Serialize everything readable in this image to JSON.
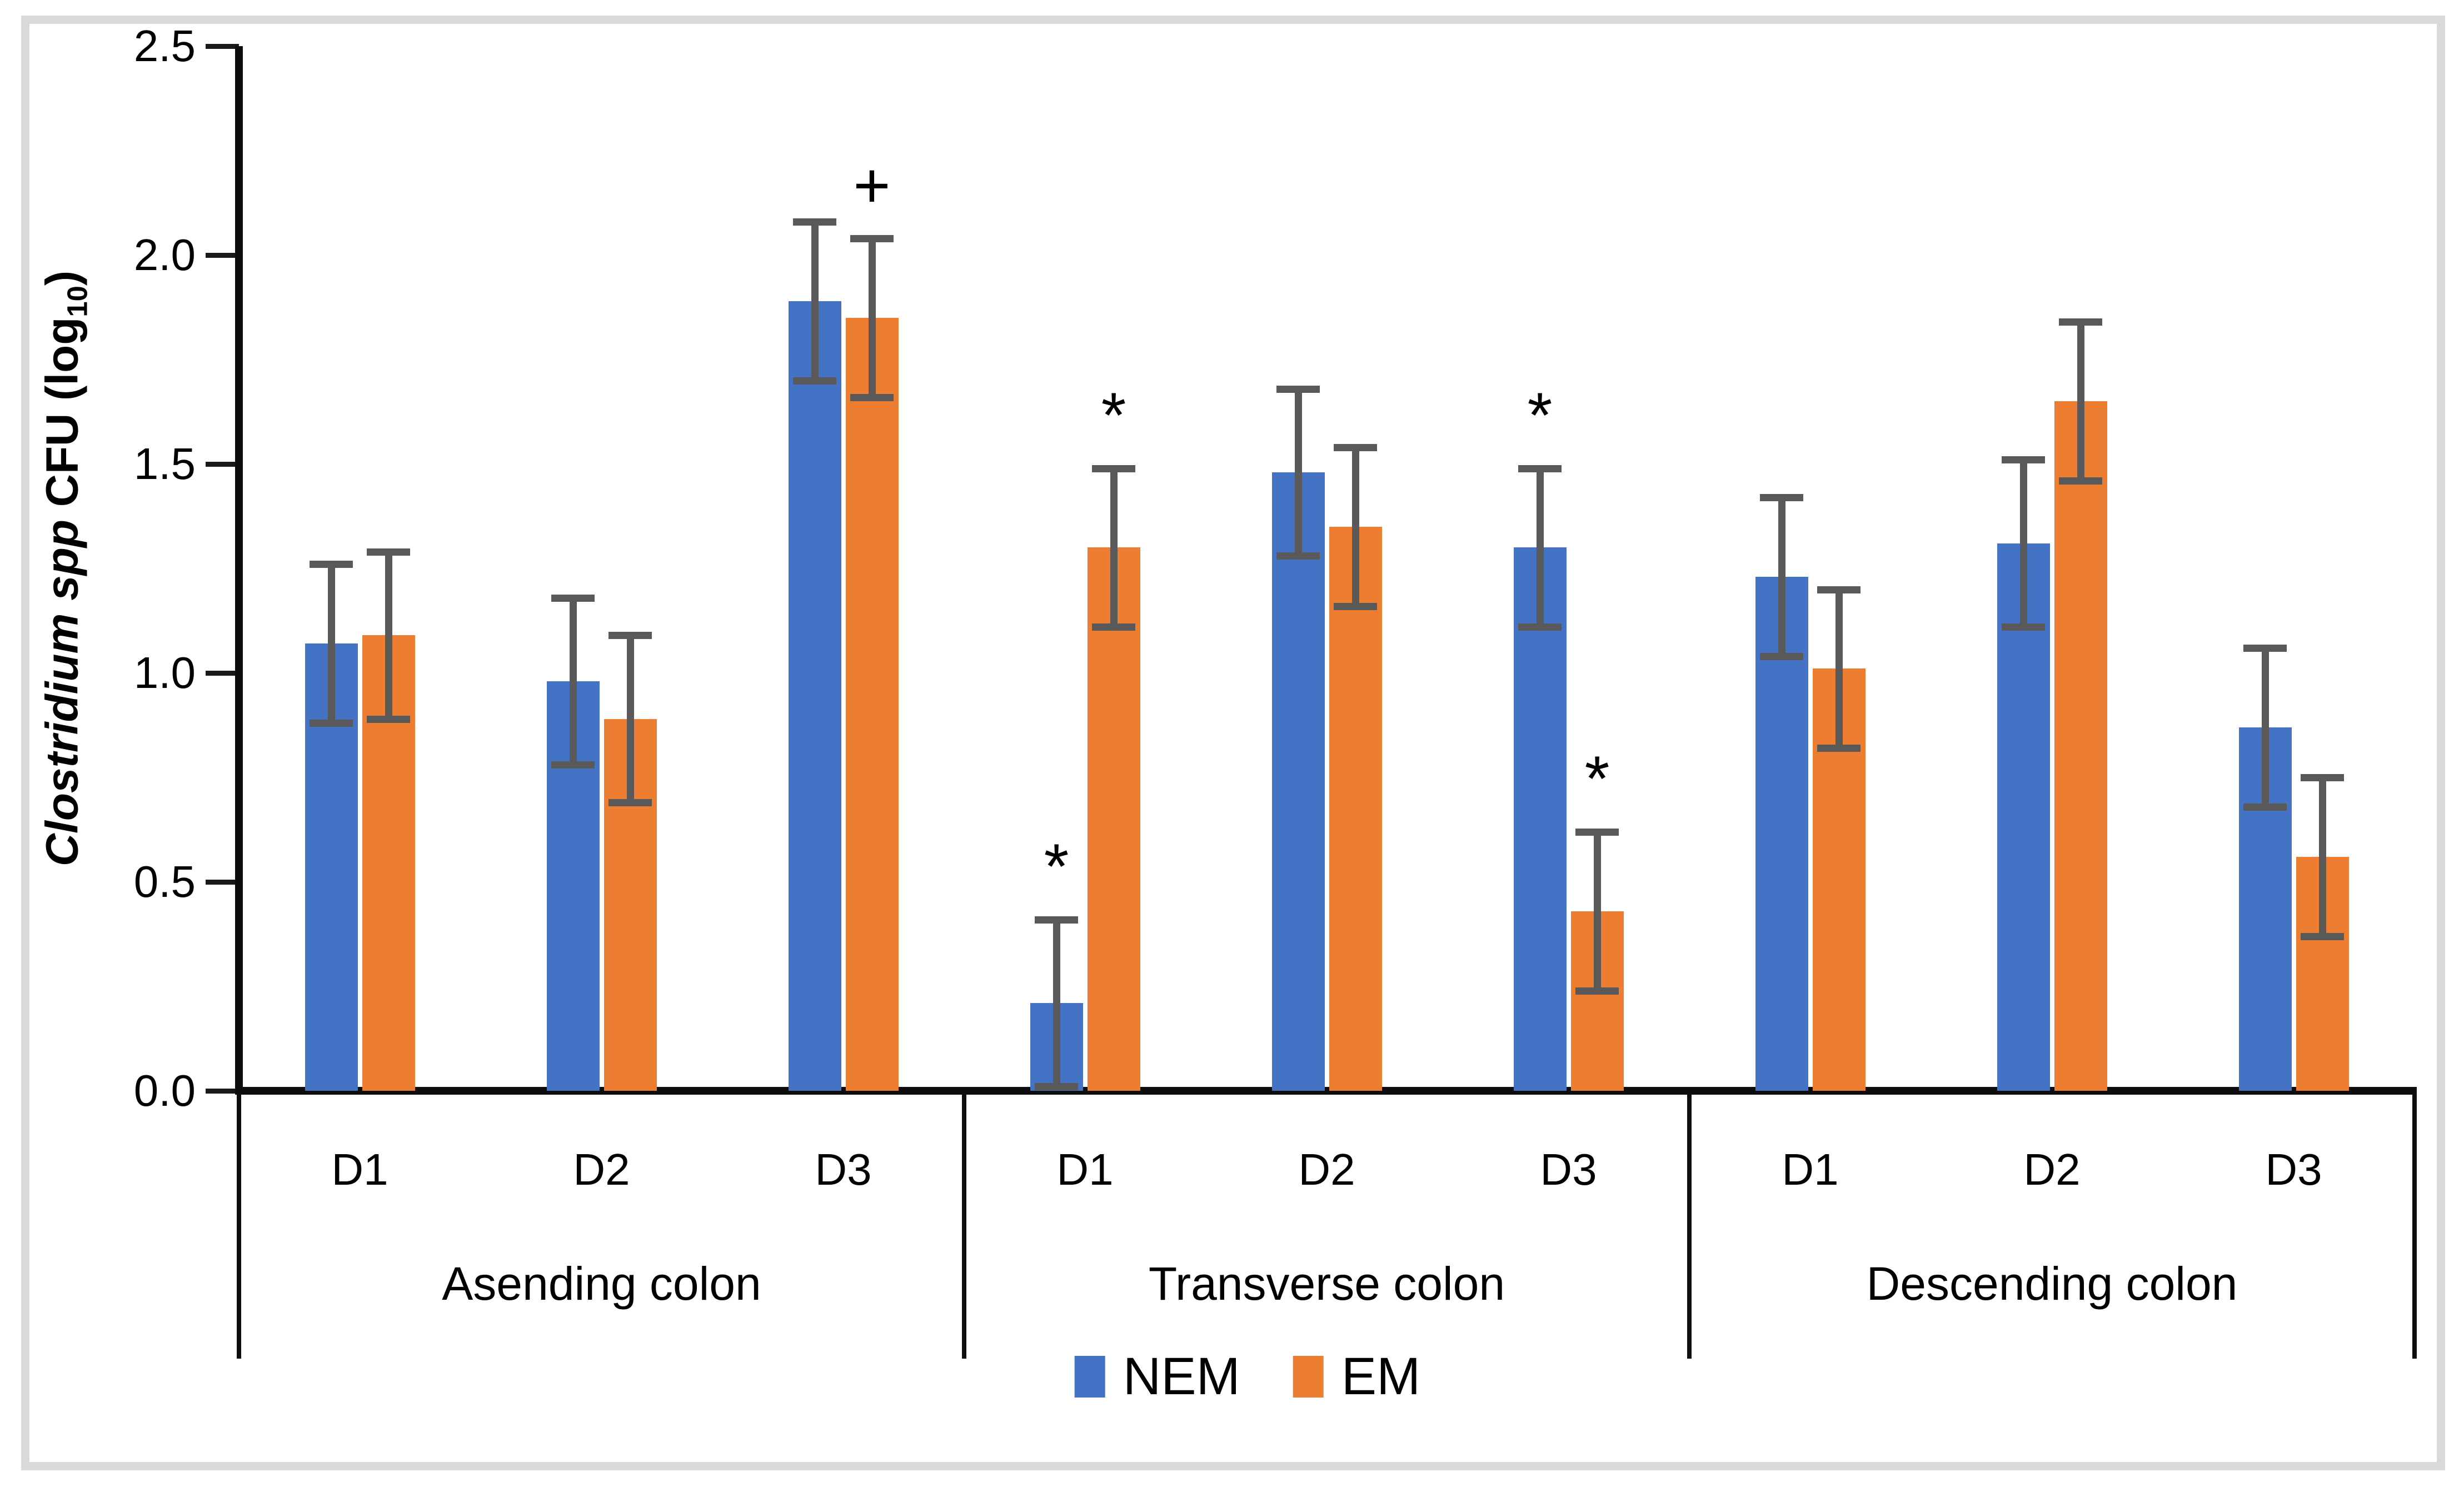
{
  "chart_data": {
    "type": "bar",
    "title": "",
    "xlabel": "",
    "ylabel": {
      "italic": "Clostridium spp",
      "normal": " CFU (log",
      "subscript": "10",
      "suffix": ")"
    },
    "ylim": [
      0,
      2.5
    ],
    "ytick_step": 0.5,
    "yticks": [
      "0.0",
      "0.5",
      "1.0",
      "1.5",
      "2.0",
      "2.5"
    ],
    "grid": false,
    "legend_position": "bottom",
    "legend": {
      "entries": [
        {
          "label": "NEM",
          "color": "#4472C4"
        },
        {
          "label": "EM",
          "color": "#ED7D31"
        }
      ]
    },
    "colors": {
      "nem": "#4472C4",
      "em": "#ED7D31",
      "error_bar": "#595959",
      "axis": "#0d0d0d",
      "text": "#000000",
      "frame_border": "#d9d9d9"
    },
    "groups": [
      {
        "label": "Asending colon",
        "categories": [
          "D1",
          "D2",
          "D3"
        ],
        "series": [
          {
            "name": "NEM",
            "values": [
              1.07,
              0.98,
              1.89
            ],
            "errors": [
              0.19,
              0.2,
              0.19
            ],
            "markers": [
              "",
              "",
              ""
            ]
          },
          {
            "name": "EM",
            "values": [
              1.09,
              0.89,
              1.85
            ],
            "errors": [
              0.2,
              0.2,
              0.19
            ],
            "markers": [
              "",
              "",
              "+"
            ]
          }
        ]
      },
      {
        "label": "Transverse colon",
        "categories": [
          "D1",
          "D2",
          "D3"
        ],
        "series": [
          {
            "name": "NEM",
            "values": [
              0.21,
              1.48,
              1.3
            ],
            "errors": [
              0.2,
              0.2,
              0.19
            ],
            "markers": [
              "*",
              "",
              "*"
            ]
          },
          {
            "name": "EM",
            "values": [
              1.3,
              1.35,
              0.43
            ],
            "errors": [
              0.19,
              0.19,
              0.19
            ],
            "markers": [
              "*",
              "",
              "*"
            ]
          }
        ]
      },
      {
        "label": "Descending colon",
        "categories": [
          "D1",
          "D2",
          "D3"
        ],
        "series": [
          {
            "name": "NEM",
            "values": [
              1.23,
              1.31,
              0.87
            ],
            "errors": [
              0.19,
              0.2,
              0.19
            ],
            "markers": [
              "",
              "",
              ""
            ]
          },
          {
            "name": "EM",
            "values": [
              1.01,
              1.65,
              0.56
            ],
            "errors": [
              0.19,
              0.19,
              0.19
            ],
            "markers": [
              "",
              "",
              ""
            ]
          }
        ]
      }
    ]
  }
}
